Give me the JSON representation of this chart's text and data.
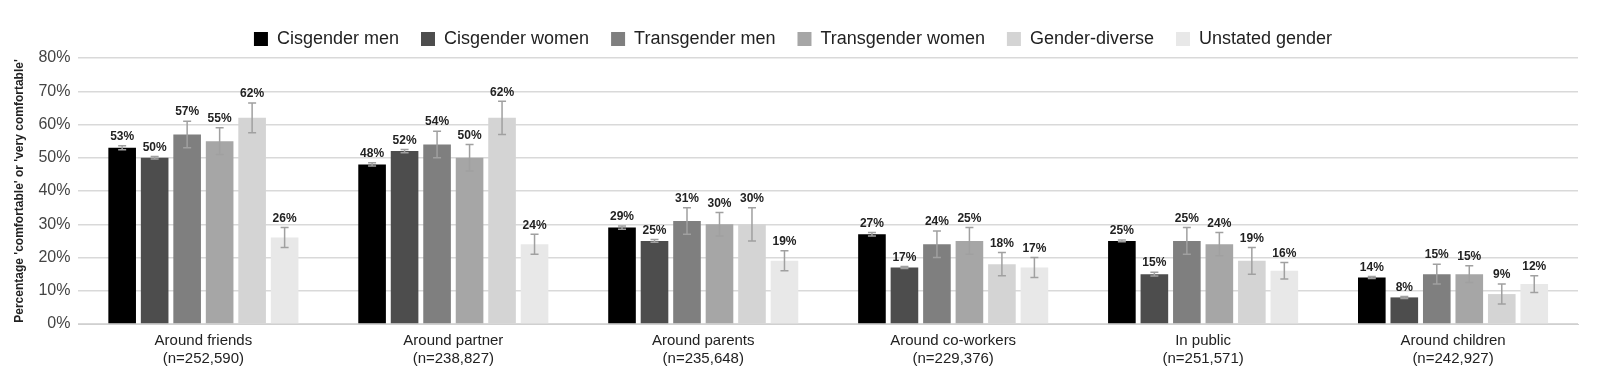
{
  "chart_data": {
    "type": "bar",
    "ylabel": "Percentage 'comfortable' or 'very comfortable'",
    "categories": [
      "Around friends\n(n=252,590)",
      "Around partner\n(n=238,827)",
      "Around parents\n(n=235,648)",
      "Around co-workers\n(n=229,376)",
      "In public\n(n=251,571)",
      "Around children\n(n=242,927)"
    ],
    "series": [
      {
        "name": "Cisgender men",
        "color": "#000000",
        "values": [
          53,
          48,
          29,
          27,
          25,
          14
        ],
        "errors": [
          0.6,
          0.5,
          0.5,
          0.5,
          0.3,
          0.3
        ],
        "value_labels": [
          "53%",
          "48%",
          "29%",
          "27%",
          "25%",
          "14%"
        ]
      },
      {
        "name": "Cisgender women",
        "color": "#4d4d4d",
        "values": [
          50,
          52,
          25,
          17,
          15,
          8
        ],
        "errors": [
          0.4,
          0.5,
          0.4,
          0.3,
          0.6,
          0.3
        ],
        "value_labels": [
          "50%",
          "52%",
          "25%",
          "17%",
          "15%",
          "8%"
        ]
      },
      {
        "name": "Transgender men",
        "color": "#7f7f7f",
        "values": [
          57,
          54,
          31,
          24,
          25,
          15
        ],
        "errors": [
          4,
          4,
          4,
          4,
          4,
          3
        ],
        "value_labels": [
          "57%",
          "54%",
          "31%",
          "24%",
          "25%",
          "15%"
        ]
      },
      {
        "name": "Transgender women",
        "color": "#a6a6a6",
        "values": [
          55,
          50,
          30,
          25,
          24,
          15
        ],
        "errors": [
          4,
          4,
          3.5,
          4,
          3.5,
          2.5
        ],
        "value_labels": [
          "55%",
          "50%",
          "30%",
          "25%",
          "24%",
          "15%"
        ]
      },
      {
        "name": "Gender-diverse",
        "color": "#d4d4d4",
        "values": [
          62,
          62,
          30,
          18,
          19,
          9
        ],
        "errors": [
          4.5,
          5,
          5,
          3.5,
          4,
          3
        ],
        "value_labels": [
          "62%",
          "62%",
          "30%",
          "18%",
          "19%",
          "9%"
        ]
      },
      {
        "name": "Unstated gender",
        "color": "#e8e8e8",
        "values": [
          26,
          24,
          19,
          17,
          16,
          12
        ],
        "errors": [
          3,
          3,
          3,
          3,
          2.5,
          2.5
        ],
        "value_labels": [
          "26%",
          "24%",
          "19%",
          "17%",
          "16%",
          "12%"
        ]
      }
    ],
    "ylim": [
      0,
      80
    ],
    "yticks": [
      {
        "value": 0,
        "label": "0%"
      },
      {
        "value": 10,
        "label": "10%"
      },
      {
        "value": 20,
        "label": "20%"
      },
      {
        "value": 30,
        "label": "30%"
      },
      {
        "value": 40,
        "label": "40%"
      },
      {
        "value": 50,
        "label": "50%"
      },
      {
        "value": 60,
        "label": "60%"
      },
      {
        "value": 70,
        "label": "70%"
      },
      {
        "value": 80,
        "label": "80%"
      }
    ],
    "grid": "y",
    "legend": "top"
  }
}
